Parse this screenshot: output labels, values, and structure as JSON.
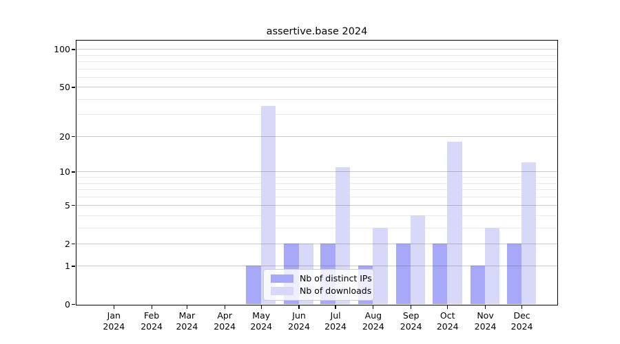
{
  "title": "assertive.base 2024",
  "legend": {
    "items": [
      {
        "label": "Nb of distinct IPs",
        "color": "#a8a8f8"
      },
      {
        "label": "Nb of downloads",
        "color": "#d8d8f8"
      }
    ]
  },
  "y_axis": {
    "tick_labels": [
      "0",
      "1",
      "2",
      "5",
      "10",
      "20",
      "50",
      "100"
    ]
  },
  "x_axis": {
    "months": [
      "Jan",
      "Feb",
      "Mar",
      "Apr",
      "May",
      "Jun",
      "Jul",
      "Aug",
      "Sep",
      "Oct",
      "Nov",
      "Dec"
    ],
    "year_label": "2024"
  },
  "chart_data": {
    "type": "bar",
    "title": "assertive.base 2024",
    "categories": [
      "Jan 2024",
      "Feb 2024",
      "Mar 2024",
      "Apr 2024",
      "May 2024",
      "Jun 2024",
      "Jul 2024",
      "Aug 2024",
      "Sep 2024",
      "Oct 2024",
      "Nov 2024",
      "Dec 2024"
    ],
    "series": [
      {
        "name": "Nb of distinct IPs",
        "color": "#a8a8f8",
        "values": [
          0,
          0,
          0,
          0,
          1,
          2,
          2,
          1,
          2,
          2,
          1,
          2
        ]
      },
      {
        "name": "Nb of downloads",
        "color": "#d8d8f8",
        "values": [
          0,
          0,
          0,
          0,
          35,
          2,
          11,
          3,
          4,
          18,
          3,
          12
        ]
      }
    ],
    "yscale": "log1p",
    "ylim": [
      0,
      117
    ],
    "yticks": [
      0,
      1,
      2,
      5,
      10,
      20,
      50,
      100
    ],
    "yticks_minor": [
      3,
      4,
      6,
      7,
      8,
      9,
      30,
      40,
      60,
      70,
      80,
      90
    ],
    "grid": true,
    "legend_position": "inside bottom-center",
    "colors": {
      "major_grid": "#c9c9c9",
      "minor_grid": "#eaeaea",
      "spine": "#000000"
    }
  }
}
